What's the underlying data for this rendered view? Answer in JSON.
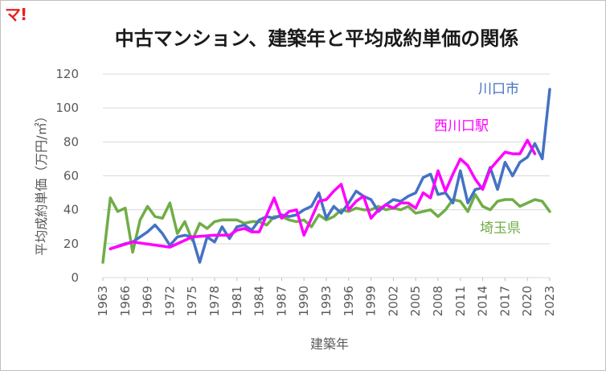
{
  "logo_text": "マ!",
  "colors": {
    "kawaguchi_city": "#4472c4",
    "nishikawaguchi_station": "#ff00ff",
    "saitama_pref": "#70ad47",
    "logo": "#e8201f"
  },
  "chart_data": {
    "type": "line",
    "title": "中古マンション、建築年と平均成約単価の関係",
    "xlabel": "建築年",
    "ylabel": "平均成約単価（万円/㎡）",
    "xlim": [
      1963,
      2023
    ],
    "ylim": [
      0,
      120
    ],
    "y_ticks": [
      "0",
      "20",
      "40",
      "60",
      "80",
      "100",
      "120"
    ],
    "x_ticks": [
      "1963",
      "1966",
      "1969",
      "1972",
      "1975",
      "1978",
      "1981",
      "1984",
      "1987",
      "1990",
      "1993",
      "1996",
      "1999",
      "2002",
      "2005",
      "2008",
      "2011",
      "2014",
      "2017",
      "2020",
      "2023"
    ],
    "grid": "horizontal",
    "series": [
      {
        "name": "川口市",
        "color": "#4472c4",
        "points": [
          [
            1964,
            17
          ],
          [
            1966,
            20
          ],
          [
            1967,
            21
          ],
          [
            1968,
            24
          ],
          [
            1969,
            27
          ],
          [
            1970,
            31
          ],
          [
            1971,
            26
          ],
          [
            1972,
            19
          ],
          [
            1973,
            24
          ],
          [
            1974,
            25
          ],
          [
            1975,
            24
          ],
          [
            1976,
            9
          ],
          [
            1977,
            24
          ],
          [
            1978,
            21
          ],
          [
            1979,
            30
          ],
          [
            1980,
            23
          ],
          [
            1981,
            30
          ],
          [
            1982,
            31
          ],
          [
            1983,
            28
          ],
          [
            1984,
            34
          ],
          [
            1985,
            36
          ],
          [
            1986,
            35
          ],
          [
            1987,
            37
          ],
          [
            1988,
            36
          ],
          [
            1989,
            37
          ],
          [
            1990,
            40
          ],
          [
            1991,
            42
          ],
          [
            1992,
            50
          ],
          [
            1993,
            35
          ],
          [
            1994,
            42
          ],
          [
            1995,
            38
          ],
          [
            1996,
            44
          ],
          [
            1997,
            51
          ],
          [
            1998,
            48
          ],
          [
            1999,
            46
          ],
          [
            2000,
            39
          ],
          [
            2001,
            43
          ],
          [
            2002,
            46
          ],
          [
            2003,
            45
          ],
          [
            2004,
            48
          ],
          [
            2005,
            50
          ],
          [
            2006,
            59
          ],
          [
            2007,
            61
          ],
          [
            2008,
            49
          ],
          [
            2009,
            50
          ],
          [
            2010,
            44
          ],
          [
            2011,
            63
          ],
          [
            2012,
            44
          ],
          [
            2013,
            52
          ],
          [
            2014,
            53
          ],
          [
            2015,
            65
          ],
          [
            2016,
            52
          ],
          [
            2017,
            68
          ],
          [
            2018,
            60
          ],
          [
            2019,
            68
          ],
          [
            2020,
            71
          ],
          [
            2021,
            79
          ],
          [
            2022,
            70
          ],
          [
            2023,
            111
          ]
        ]
      },
      {
        "name": "西川口駅",
        "color": "#ff00ff",
        "points": [
          [
            1964,
            17
          ],
          [
            1967,
            21
          ],
          [
            1972,
            18
          ],
          [
            1975,
            24
          ],
          [
            1978,
            25
          ],
          [
            1980,
            25
          ],
          [
            1981,
            28
          ],
          [
            1982,
            29
          ],
          [
            1983,
            27
          ],
          [
            1984,
            27
          ],
          [
            1985,
            37
          ],
          [
            1986,
            47
          ],
          [
            1987,
            35
          ],
          [
            1988,
            39
          ],
          [
            1989,
            40
          ],
          [
            1990,
            25
          ],
          [
            1991,
            35
          ],
          [
            1992,
            45
          ],
          [
            1993,
            46
          ],
          [
            1994,
            51
          ],
          [
            1995,
            55
          ],
          [
            1996,
            40
          ],
          [
            1997,
            45
          ],
          [
            1998,
            48
          ],
          [
            1999,
            35
          ],
          [
            2000,
            40
          ],
          [
            2001,
            43
          ],
          [
            2002,
            41
          ],
          [
            2003,
            44
          ],
          [
            2004,
            44
          ],
          [
            2005,
            41
          ],
          [
            2006,
            50
          ],
          [
            2007,
            47
          ],
          [
            2008,
            63
          ],
          [
            2009,
            51
          ],
          [
            2010,
            61
          ],
          [
            2011,
            70
          ],
          [
            2012,
            66
          ],
          [
            2013,
            58
          ],
          [
            2014,
            52
          ],
          [
            2015,
            64
          ],
          [
            2016,
            69
          ],
          [
            2017,
            74
          ],
          [
            2018,
            73
          ],
          [
            2019,
            73
          ],
          [
            2020,
            81
          ],
          [
            2021,
            73
          ]
        ]
      },
      {
        "name": "埼玉県",
        "color": "#70ad47",
        "points": [
          [
            1963,
            9
          ],
          [
            1964,
            47
          ],
          [
            1965,
            39
          ],
          [
            1966,
            41
          ],
          [
            1967,
            15
          ],
          [
            1968,
            34
          ],
          [
            1969,
            42
          ],
          [
            1970,
            36
          ],
          [
            1971,
            35
          ],
          [
            1972,
            44
          ],
          [
            1973,
            26
          ],
          [
            1974,
            33
          ],
          [
            1975,
            22
          ],
          [
            1976,
            32
          ],
          [
            1977,
            29
          ],
          [
            1978,
            33
          ],
          [
            1979,
            34
          ],
          [
            1980,
            34
          ],
          [
            1981,
            34
          ],
          [
            1982,
            32
          ],
          [
            1983,
            33
          ],
          [
            1984,
            33
          ],
          [
            1985,
            31
          ],
          [
            1986,
            36
          ],
          [
            1987,
            36
          ],
          [
            1988,
            34
          ],
          [
            1989,
            33
          ],
          [
            1990,
            34
          ],
          [
            1991,
            30
          ],
          [
            1992,
            37
          ],
          [
            1993,
            34
          ],
          [
            1994,
            36
          ],
          [
            1995,
            40
          ],
          [
            1996,
            39
          ],
          [
            1997,
            41
          ],
          [
            1998,
            40
          ],
          [
            1999,
            40
          ],
          [
            2000,
            42
          ],
          [
            2001,
            40
          ],
          [
            2002,
            41
          ],
          [
            2003,
            40
          ],
          [
            2004,
            42
          ],
          [
            2005,
            38
          ],
          [
            2006,
            39
          ],
          [
            2007,
            40
          ],
          [
            2008,
            36
          ],
          [
            2009,
            40
          ],
          [
            2010,
            46
          ],
          [
            2011,
            45
          ],
          [
            2012,
            39
          ],
          [
            2013,
            49
          ],
          [
            2014,
            42
          ],
          [
            2015,
            40
          ],
          [
            2016,
            45
          ],
          [
            2017,
            46
          ],
          [
            2018,
            46
          ],
          [
            2019,
            42
          ],
          [
            2020,
            44
          ],
          [
            2021,
            46
          ],
          [
            2022,
            45
          ],
          [
            2023,
            39
          ]
        ]
      }
    ]
  }
}
